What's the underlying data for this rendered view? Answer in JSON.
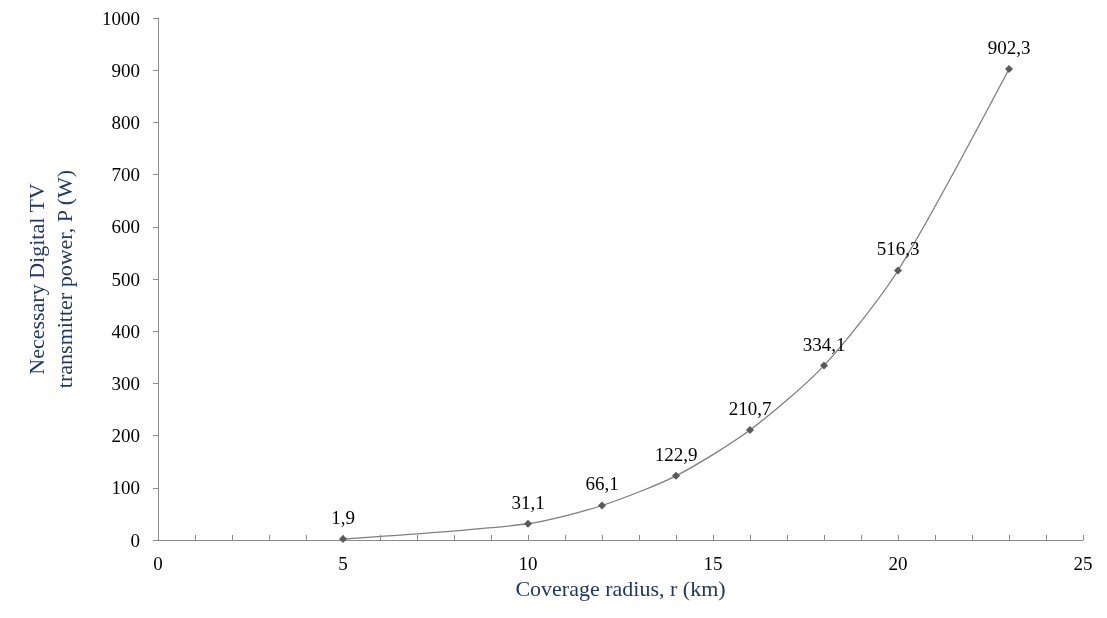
{
  "chart_data": {
    "type": "line",
    "xlabel": "Coverage radius, r (km)",
    "ylabel": "Necessary Digital TV transmitter power, P (W)",
    "x": [
      5,
      10,
      12,
      14,
      16,
      18,
      20,
      23
    ],
    "series": [
      {
        "color": "#7f7f7f",
        "values": [
          1.9,
          31.1,
          66.1,
          122.9,
          210.7,
          334.1,
          516.3,
          902.3
        ],
        "value_labels": [
          "1,9",
          "31,1",
          "66,1",
          "122,9",
          "210,7",
          "334,1",
          "516,3",
          "902,3"
        ]
      }
    ],
    "xlim": [
      0,
      25
    ],
    "xticks": [
      0,
      5,
      10,
      15,
      20,
      25
    ],
    "ylim": [
      0,
      1000
    ],
    "yticks": [
      0,
      100,
      200,
      300,
      400,
      500,
      600,
      700,
      800,
      900,
      1000
    ],
    "marker": "diamond",
    "line_style": "solid"
  }
}
